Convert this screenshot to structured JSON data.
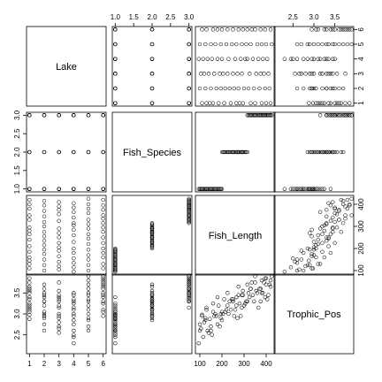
{
  "chart_data": {
    "type": "scatter",
    "subtype": "pairs-matrix",
    "title": "",
    "variables": [
      {
        "name": "Lake",
        "range": [
          0.8,
          6.2
        ],
        "ticks": [
          1,
          2,
          3,
          4,
          5,
          6
        ]
      },
      {
        "name": "Fish_Species",
        "range": [
          0.92,
          3.08
        ],
        "ticks": [
          1.0,
          1.5,
          2.0,
          2.5,
          3.0
        ],
        "tick_labels": [
          "1.0",
          "1.5",
          "2.0",
          "2.5",
          "3.0"
        ]
      },
      {
        "name": "Fish_Length",
        "range": [
          80,
          440
        ],
        "ticks": [
          100,
          200,
          300,
          400
        ]
      },
      {
        "name": "Trophic_Pos",
        "range": [
          2.05,
          3.95
        ],
        "ticks": [
          2.5,
          3.0,
          3.5
        ],
        "tick_labels": [
          "2.5",
          "3.0",
          "3.5"
        ]
      }
    ],
    "tick_placement": {
      "top": [
        1,
        3
      ],
      "right": [
        0,
        2
      ],
      "bottom": [
        0,
        2
      ],
      "left": [
        1,
        3
      ]
    },
    "observations": [
      [
        1,
        1,
        110,
        2.98
      ],
      [
        1,
        1,
        130,
        3.15
      ],
      [
        1,
        1,
        145,
        2.88
      ],
      [
        1,
        1,
        160,
        3.05
      ],
      [
        1,
        1,
        185,
        3.2
      ],
      [
        1,
        2,
        210,
        3.35
      ],
      [
        1,
        2,
        240,
        3.1
      ],
      [
        1,
        2,
        265,
        3.4
      ],
      [
        1,
        2,
        280,
        3.25
      ],
      [
        1,
        2,
        295,
        3.55
      ],
      [
        1,
        3,
        330,
        3.6
      ],
      [
        1,
        3,
        350,
        3.75
      ],
      [
        1,
        3,
        380,
        3.5
      ],
      [
        1,
        3,
        400,
        3.85
      ],
      [
        1,
        3,
        420,
        3.65
      ],
      [
        2,
        1,
        100,
        2.75
      ],
      [
        2,
        1,
        125,
        2.9
      ],
      [
        2,
        1,
        150,
        2.6
      ],
      [
        2,
        1,
        175,
        2.95
      ],
      [
        2,
        1,
        195,
        3.0
      ],
      [
        2,
        2,
        215,
        3.05
      ],
      [
        2,
        2,
        235,
        3.3
      ],
      [
        2,
        2,
        255,
        2.95
      ],
      [
        2,
        2,
        275,
        3.45
      ],
      [
        2,
        2,
        300,
        3.2
      ],
      [
        2,
        3,
        320,
        3.5
      ],
      [
        2,
        3,
        345,
        3.3
      ],
      [
        2,
        3,
        370,
        3.6
      ],
      [
        2,
        3,
        395,
        3.4
      ],
      [
        2,
        3,
        415,
        3.7
      ],
      [
        3,
        1,
        105,
        2.65
      ],
      [
        3,
        1,
        120,
        2.8
      ],
      [
        3,
        1,
        140,
        2.55
      ],
      [
        3,
        1,
        165,
        2.95
      ],
      [
        3,
        1,
        190,
        2.7
      ],
      [
        3,
        2,
        205,
        3.0
      ],
      [
        3,
        2,
        225,
        3.2
      ],
      [
        3,
        2,
        250,
        3.35
      ],
      [
        3,
        2,
        270,
        2.9
      ],
      [
        3,
        2,
        290,
        3.15
      ],
      [
        3,
        3,
        325,
        3.4
      ],
      [
        3,
        3,
        355,
        3.55
      ],
      [
        3,
        3,
        375,
        3.3
      ],
      [
        3,
        3,
        390,
        3.75
      ],
      [
        3,
        3,
        410,
        3.45
      ],
      [
        4,
        1,
        95,
        2.3
      ],
      [
        4,
        1,
        115,
        2.45
      ],
      [
        4,
        1,
        135,
        2.6
      ],
      [
        4,
        1,
        155,
        2.5
      ],
      [
        4,
        1,
        180,
        2.75
      ],
      [
        4,
        2,
        200,
        2.85
      ],
      [
        4,
        2,
        230,
        3.0
      ],
      [
        4,
        2,
        260,
        3.1
      ],
      [
        4,
        2,
        285,
        2.95
      ],
      [
        4,
        2,
        305,
        3.25
      ],
      [
        4,
        3,
        315,
        3.3
      ],
      [
        4,
        3,
        340,
        3.45
      ],
      [
        4,
        3,
        365,
        3.15
      ],
      [
        4,
        3,
        385,
        3.5
      ],
      [
        4,
        3,
        405,
        3.35
      ],
      [
        5,
        1,
        100,
        2.6
      ],
      [
        5,
        1,
        125,
        2.85
      ],
      [
        5,
        1,
        150,
        2.7
      ],
      [
        5,
        1,
        170,
        3.0
      ],
      [
        5,
        1,
        195,
        2.9
      ],
      [
        5,
        2,
        220,
        3.1
      ],
      [
        5,
        2,
        245,
        3.35
      ],
      [
        5,
        2,
        265,
        3.2
      ],
      [
        5,
        2,
        290,
        3.45
      ],
      [
        5,
        2,
        310,
        3.3
      ],
      [
        5,
        3,
        330,
        3.6
      ],
      [
        5,
        3,
        360,
        3.5
      ],
      [
        5,
        3,
        380,
        3.8
      ],
      [
        5,
        3,
        400,
        3.7
      ],
      [
        5,
        3,
        425,
        3.9
      ],
      [
        6,
        1,
        110,
        2.95
      ],
      [
        6,
        1,
        130,
        3.1
      ],
      [
        6,
        1,
        160,
        3.25
      ],
      [
        6,
        1,
        180,
        3.4
      ],
      [
        6,
        1,
        200,
        3.05
      ],
      [
        6,
        2,
        225,
        3.5
      ],
      [
        6,
        2,
        250,
        3.3
      ],
      [
        6,
        2,
        275,
        3.65
      ],
      [
        6,
        2,
        295,
        3.45
      ],
      [
        6,
        2,
        315,
        3.7
      ],
      [
        6,
        3,
        335,
        3.75
      ],
      [
        6,
        3,
        350,
        3.9
      ],
      [
        6,
        3,
        375,
        3.6
      ],
      [
        6,
        3,
        395,
        3.85
      ],
      [
        6,
        3,
        420,
        3.8
      ]
    ]
  }
}
